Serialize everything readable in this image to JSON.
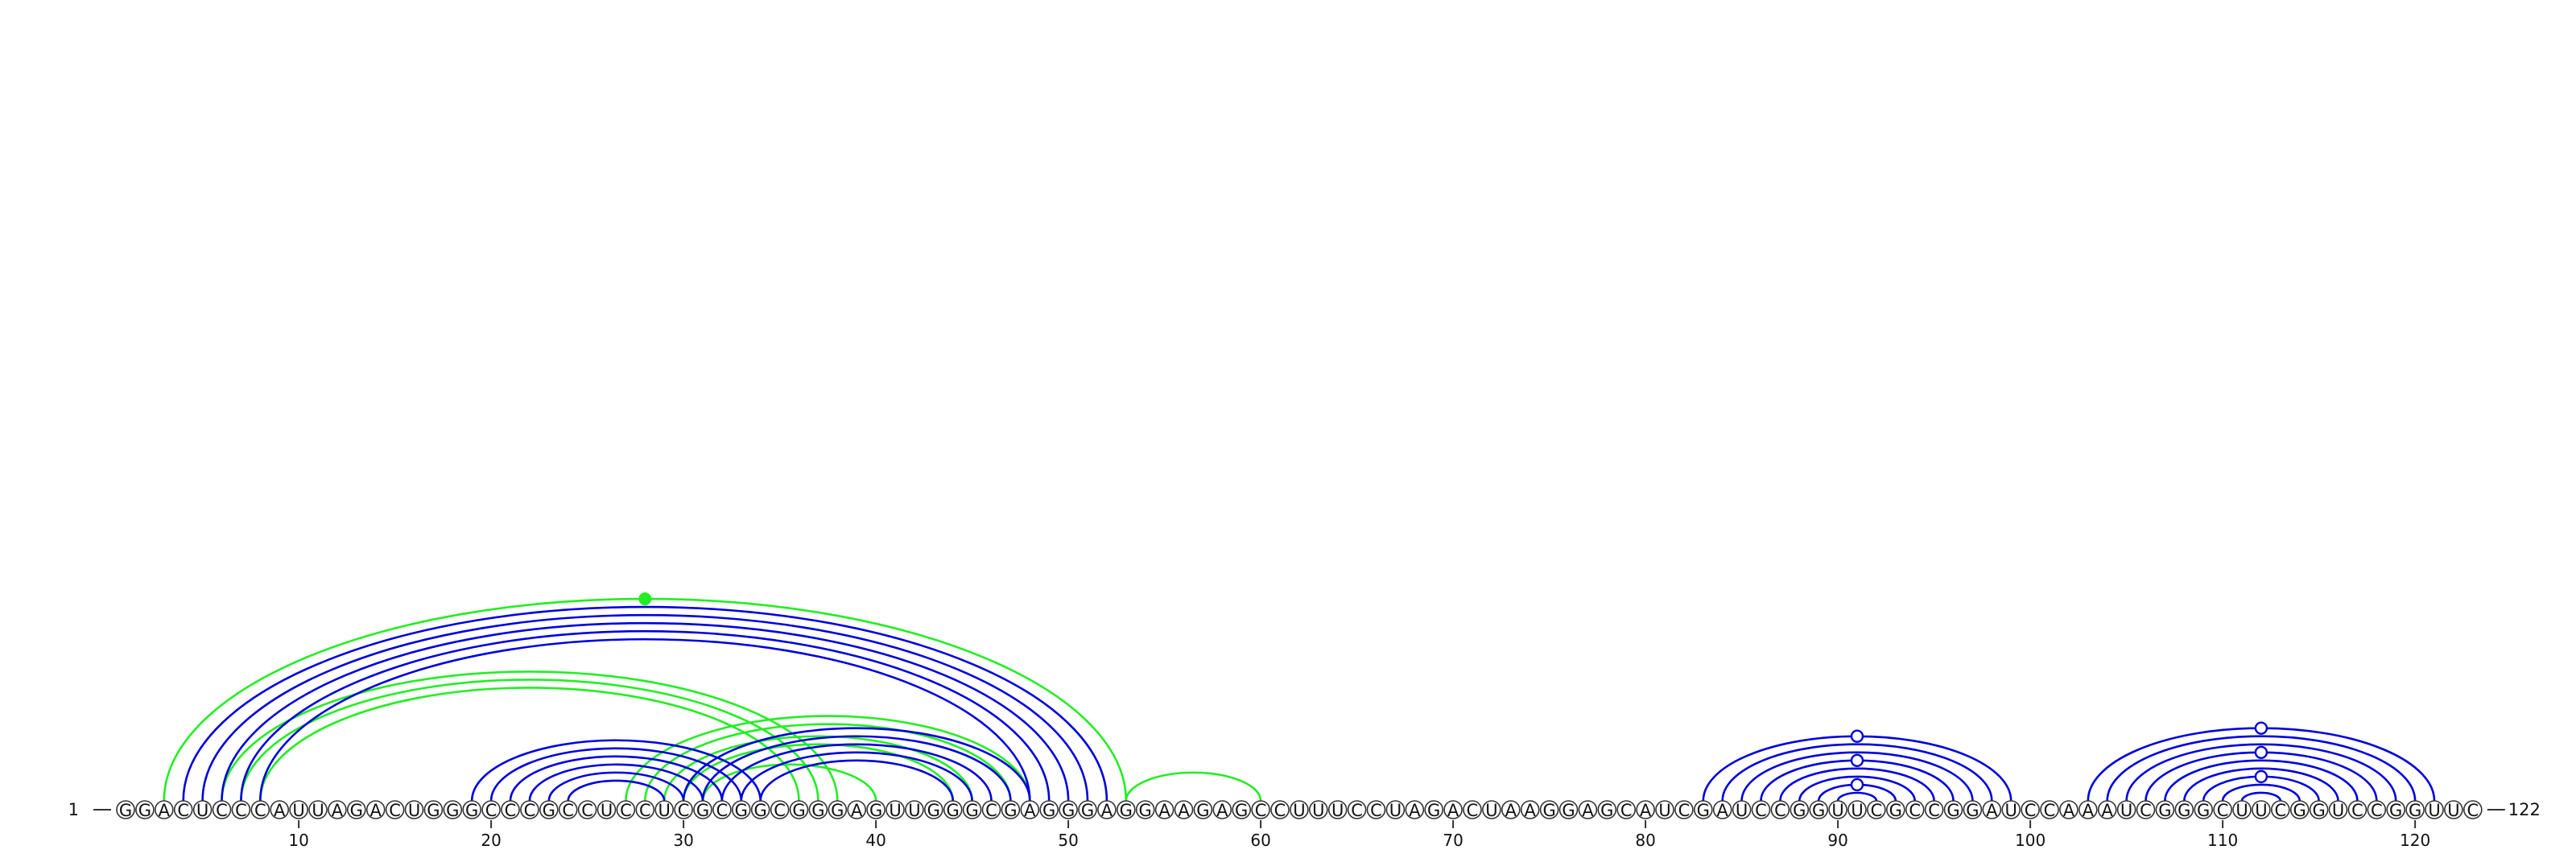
{
  "colors": {
    "pair_blue": "#0000dd",
    "pair_green": "#22ee22",
    "backbone": "#333333"
  },
  "sequence": "GGACUCCCAUUAGACUGGGCCCGCCUCCUCGCGGCGGGAGUUGGGCGAGGGAGGAAGAGCCUUUCCUAGACUAAGGAGCAUCGAUCCGGUUCGCCGGAUCCAAAUCGGGCUUCGGUCCGGUUC",
  "start_label": "1",
  "end_label": "122",
  "tick_labels": [
    "10",
    "20",
    "30",
    "40",
    "50",
    "60",
    "70",
    "80",
    "90",
    "100",
    "110",
    "120"
  ],
  "blue_pairs": [
    [
      4,
      52
    ],
    [
      5,
      51
    ],
    [
      6,
      50
    ],
    [
      7,
      49
    ],
    [
      8,
      48
    ],
    [
      19,
      34
    ],
    [
      20,
      33
    ],
    [
      21,
      32
    ],
    [
      22,
      31
    ],
    [
      23,
      30
    ],
    [
      24,
      29
    ],
    [
      30,
      48
    ],
    [
      31,
      47
    ],
    [
      32,
      46
    ],
    [
      33,
      45
    ],
    [
      34,
      44
    ],
    [
      83,
      99
    ],
    [
      84,
      98
    ],
    [
      85,
      97
    ],
    [
      86,
      96
    ],
    [
      87,
      95
    ],
    [
      88,
      94
    ],
    [
      89,
      93
    ],
    [
      90,
      92
    ],
    [
      103,
      121
    ],
    [
      104,
      120
    ],
    [
      105,
      119
    ],
    [
      106,
      118
    ],
    [
      107,
      117
    ],
    [
      108,
      116
    ],
    [
      109,
      115
    ],
    [
      110,
      114
    ],
    [
      111,
      113
    ]
  ],
  "green_pairs": [
    [
      3,
      53
    ],
    [
      6,
      38
    ],
    [
      7,
      37
    ],
    [
      8,
      36
    ],
    [
      27,
      48
    ],
    [
      28,
      47
    ],
    [
      29,
      45
    ],
    [
      30,
      44
    ],
    [
      31,
      40
    ],
    [
      53,
      60
    ]
  ],
  "blue_hairpin_markers": [
    91,
    112
  ],
  "green_marker": 28
}
